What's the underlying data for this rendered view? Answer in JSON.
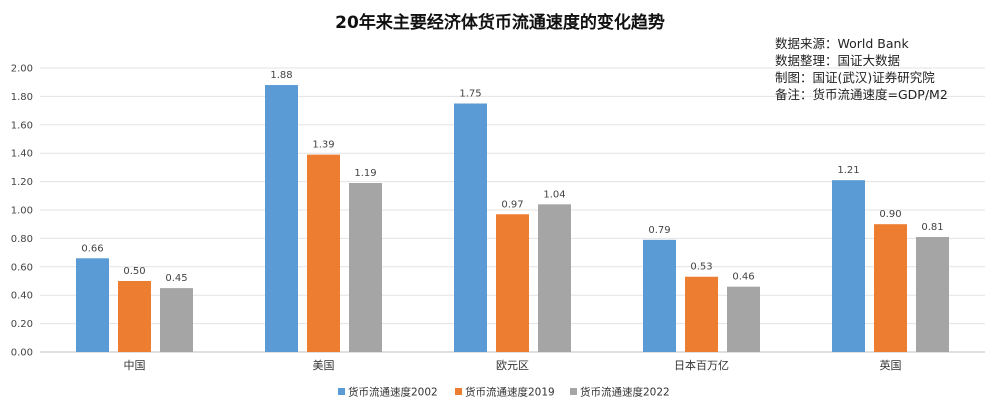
{
  "chart_data": {
    "type": "bar",
    "title": "20年来主要经济体货币流通速度的变化趋势",
    "notes": [
      "数据来源：World Bank",
      "数据整理：国证大数据",
      "制图：国证(武汉)证券研究院",
      "备注：货币流通速度=GDP/M2"
    ],
    "categories": [
      "中国",
      "美国",
      "欧元区",
      "日本百万亿",
      "英国"
    ],
    "series": [
      {
        "name": "货币流通速度2002",
        "color": "#5b9bd5",
        "values": [
          0.66,
          1.88,
          1.75,
          0.79,
          1.21
        ],
        "labels": [
          "0.66",
          "1.88",
          "1.75",
          "0.79",
          "1.21"
        ]
      },
      {
        "name": "货币流通速度2019",
        "color": "#ed7d31",
        "values": [
          0.5,
          1.39,
          0.97,
          0.53,
          0.9
        ],
        "labels": [
          "0.50",
          "1.39",
          "0.97",
          "0.53",
          "0.90"
        ]
      },
      {
        "name": "货币流通速度2022",
        "color": "#a5a5a5",
        "values": [
          0.45,
          1.19,
          1.04,
          0.46,
          0.81
        ],
        "labels": [
          "0.45",
          "1.19",
          "1.04",
          "0.46",
          "0.81"
        ]
      }
    ],
    "yticks": [
      "0.00",
      "0.20",
      "0.40",
      "0.60",
      "0.80",
      "1.00",
      "1.20",
      "1.40",
      "1.60",
      "1.80",
      "2.00"
    ],
    "ylim": [
      0,
      2
    ],
    "grid": true,
    "legend_position": "bottom"
  }
}
